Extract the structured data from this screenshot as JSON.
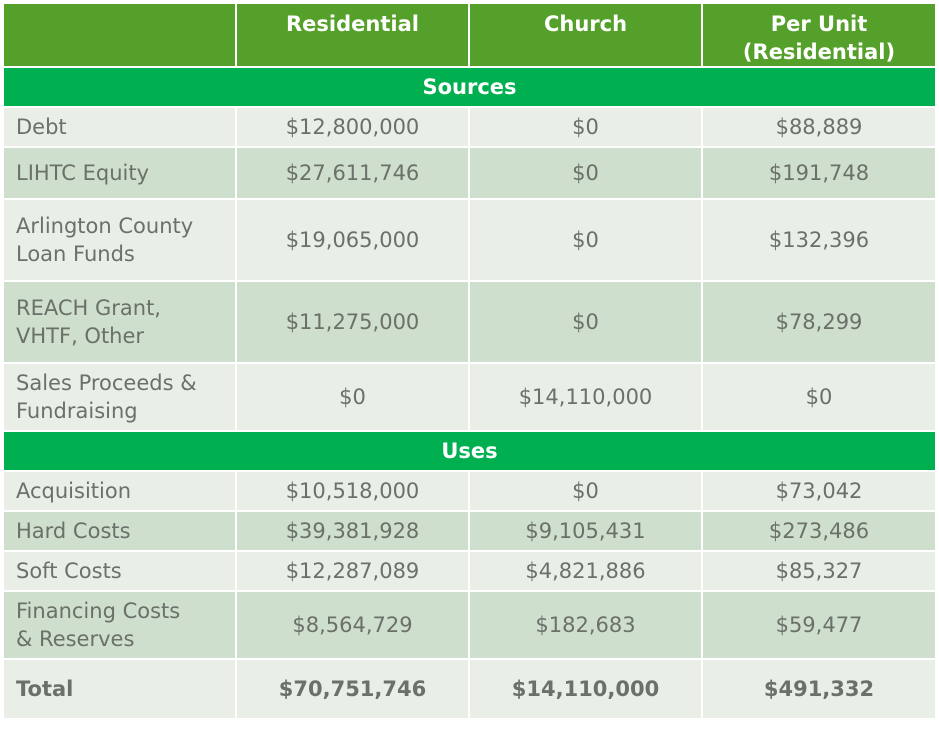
{
  "header": {
    "col1": "",
    "col2": "Residential",
    "col3": "Church",
    "col4_line1": "Per Unit",
    "col4_line2": "(Residential)"
  },
  "sections": {
    "sources": "Sources",
    "uses": "Uses"
  },
  "sources_rows": [
    {
      "label_line1": "Debt",
      "label_line2": "",
      "residential": "$12,800,000",
      "church": "$0",
      "per_unit": "$88,889"
    },
    {
      "label_line1": "LIHTC Equity",
      "label_line2": "",
      "residential": "$27,611,746",
      "church": "$0",
      "per_unit": "$191,748"
    },
    {
      "label_line1": "Arlington County",
      "label_line2": "Loan Funds",
      "residential": "$19,065,000",
      "church": "$0",
      "per_unit": "$132,396"
    },
    {
      "label_line1": "REACH Grant,",
      "label_line2": "VHTF, Other",
      "residential": "$11,275,000",
      "church": "$0",
      "per_unit": "$78,299"
    },
    {
      "label_line1": "Sales Proceeds &",
      "label_line2": "Fundraising",
      "residential": "$0",
      "church": "$14,110,000",
      "per_unit": "$0"
    }
  ],
  "uses_rows": [
    {
      "label_line1": "Acquisition",
      "label_line2": "",
      "residential": "$10,518,000",
      "church": "$0",
      "per_unit": "$73,042"
    },
    {
      "label_line1": "Hard Costs",
      "label_line2": "",
      "residential": "$39,381,928",
      "church": "$9,105,431",
      "per_unit": "$273,486"
    },
    {
      "label_line1": "Soft Costs",
      "label_line2": "",
      "residential": "$12,287,089",
      "church": "$4,821,886",
      "per_unit": "$85,327"
    },
    {
      "label_line1": "Financing Costs",
      "label_line2": "& Reserves",
      "residential": "$8,564,729",
      "church": "$182,683",
      "per_unit": "$59,477"
    }
  ],
  "total": {
    "label": "Total",
    "residential": "$70,751,746",
    "church": "$14,110,000",
    "per_unit": "$491,332"
  }
}
